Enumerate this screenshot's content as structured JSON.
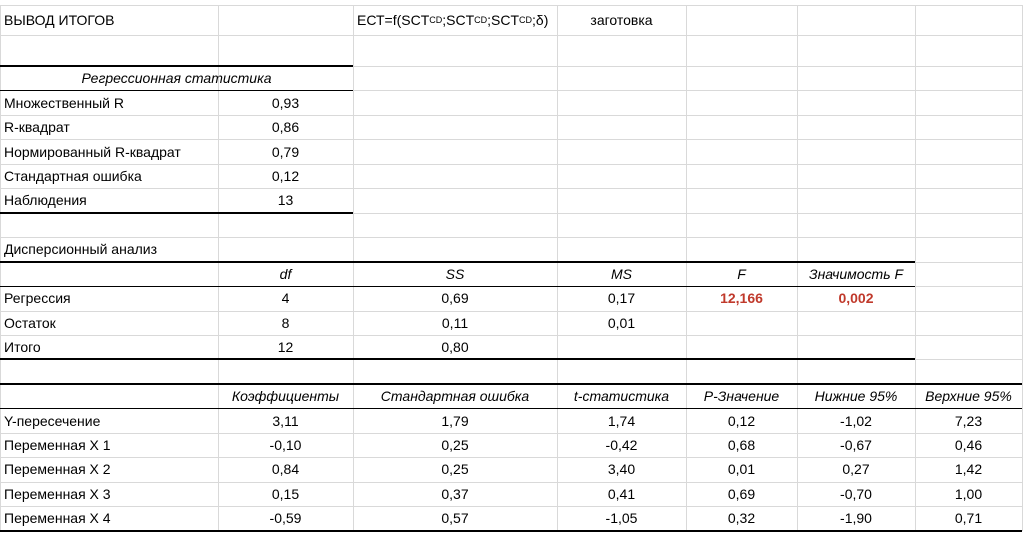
{
  "header": {
    "title": "ВЫВОД ИТОГОВ",
    "formula": [
      "ЕСТ=f(SCT",
      "CD",
      ";SCT",
      "CD",
      ";SCT",
      "CD",
      ";δ)"
    ],
    "note": "заготовка"
  },
  "regression_statistics": {
    "title": "Регрессионная статистика",
    "rows": [
      [
        "Множественный R",
        "0,93"
      ],
      [
        "R-квадрат",
        "0,86"
      ],
      [
        "Нормированный R-квадрат",
        "0,79"
      ],
      [
        "Стандартная ошибка",
        "0,12"
      ],
      [
        "Наблюдения",
        "13"
      ]
    ]
  },
  "anova": {
    "title": "Дисперсионный анализ",
    "columns": [
      "df",
      "SS",
      "MS",
      "F",
      "Значимость F"
    ],
    "rows": [
      [
        "Регрессия",
        "4",
        "0,69",
        "0,17",
        "12,166",
        "0,002"
      ],
      [
        "Остаток",
        "8",
        "0,11",
        "0,01"
      ],
      [
        "Итого",
        "12",
        "0,80"
      ]
    ]
  },
  "coefficients": {
    "columns": [
      "Коэффициенты",
      "Стандартная ошибка",
      "t-статистика",
      "P-Значение",
      "Нижние 95%",
      "Верхние 95%"
    ],
    "rows": [
      [
        "Y-пересечение",
        "3,11",
        "1,79",
        "1,74",
        "0,12",
        "-1,02",
        "7,23"
      ],
      [
        "Переменная X 1",
        "-0,10",
        "0,25",
        "-0,42",
        "0,68",
        "-0,67",
        "0,46"
      ],
      [
        "Переменная X 2",
        "0,84",
        "0,25",
        "3,40",
        "0,01",
        "0,27",
        "1,42"
      ],
      [
        "Переменная X 3",
        "0,15",
        "0,37",
        "0,41",
        "0,69",
        "-0,70",
        "1,00"
      ],
      [
        "Переменная X 4",
        "-0,59",
        "0,57",
        "-1,05",
        "0,32",
        "-1,90",
        "0,71"
      ]
    ]
  }
}
